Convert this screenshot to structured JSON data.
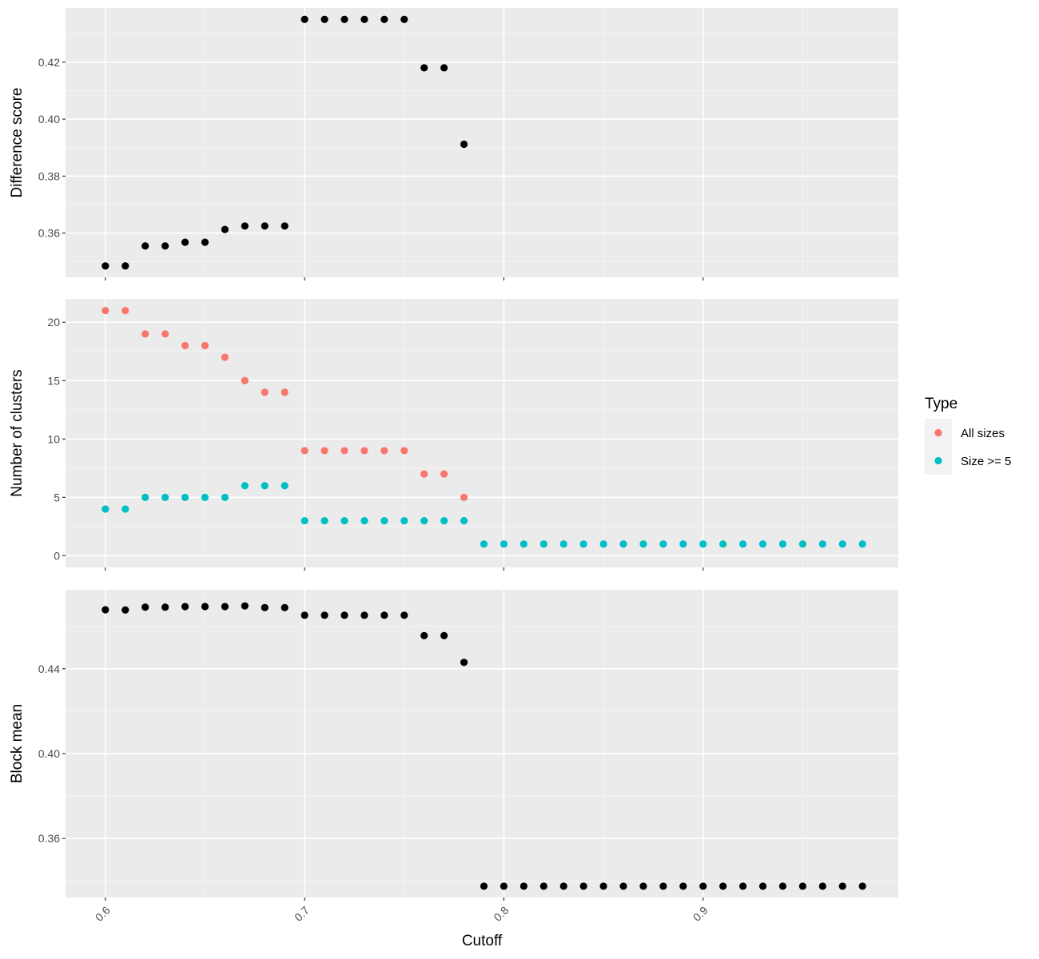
{
  "chart_data": [
    {
      "type": "scatter",
      "panel": "top",
      "ylabel": "Difference score",
      "xlim": [
        0.58,
        0.998
      ],
      "ylim": [
        0.3445,
        0.439
      ],
      "yticks": [
        0.36,
        0.38,
        0.4,
        0.42
      ],
      "ytick_labels": [
        "0.36",
        "0.38",
        "0.40",
        "0.42"
      ],
      "grid": true,
      "series": [
        {
          "color": "#000000",
          "x": [
            0.6,
            0.61,
            0.62,
            0.63,
            0.64,
            0.65,
            0.66,
            0.67,
            0.68,
            0.69,
            0.7,
            0.71,
            0.72,
            0.73,
            0.74,
            0.75,
            0.76,
            0.77,
            0.78
          ],
          "y": [
            0.3485,
            0.3485,
            0.3555,
            0.3555,
            0.3568,
            0.3568,
            0.3613,
            0.3625,
            0.3625,
            0.3625,
            0.435,
            0.435,
            0.435,
            0.435,
            0.435,
            0.435,
            0.418,
            0.418,
            0.3912
          ]
        }
      ]
    },
    {
      "type": "scatter",
      "panel": "middle",
      "ylabel": "Number of clusters",
      "xlim": [
        0.58,
        0.998
      ],
      "ylim": [
        -1,
        22
      ],
      "yticks": [
        0,
        5,
        10,
        15,
        20
      ],
      "ytick_labels": [
        "0",
        "5",
        "10",
        "15",
        "20"
      ],
      "grid": true,
      "legend": {
        "title": "Type",
        "position": "right"
      },
      "series": [
        {
          "name": "All sizes",
          "color": "#F8766D",
          "x": [
            0.6,
            0.61,
            0.62,
            0.63,
            0.64,
            0.65,
            0.66,
            0.67,
            0.68,
            0.69,
            0.7,
            0.71,
            0.72,
            0.73,
            0.74,
            0.75,
            0.76,
            0.77,
            0.78
          ],
          "y": [
            21,
            21,
            19,
            19,
            18,
            18,
            17,
            15,
            14,
            14,
            9,
            9,
            9,
            9,
            9,
            9,
            7,
            7,
            5
          ]
        },
        {
          "name": "Size >= 5",
          "color": "#00BFC4",
          "x": [
            0.6,
            0.61,
            0.62,
            0.63,
            0.64,
            0.65,
            0.66,
            0.67,
            0.68,
            0.69,
            0.7,
            0.71,
            0.72,
            0.73,
            0.74,
            0.75,
            0.76,
            0.77,
            0.78,
            0.79,
            0.8,
            0.81,
            0.82,
            0.83,
            0.84,
            0.85,
            0.86,
            0.87,
            0.88,
            0.89,
            0.9,
            0.91,
            0.92,
            0.93,
            0.94,
            0.95,
            0.96,
            0.97,
            0.98
          ],
          "y": [
            4,
            4,
            5,
            5,
            5,
            5,
            5,
            6,
            6,
            6,
            3,
            3,
            3,
            3,
            3,
            3,
            3,
            3,
            3,
            1,
            1,
            1,
            1,
            1,
            1,
            1,
            1,
            1,
            1,
            1,
            1,
            1,
            1,
            1,
            1,
            1,
            1,
            1,
            1
          ]
        }
      ]
    },
    {
      "type": "scatter",
      "panel": "bottom",
      "ylabel": "Block mean",
      "xlabel": "Cutoff",
      "xlim": [
        0.58,
        0.998
      ],
      "ylim": [
        0.3322,
        0.4772
      ],
      "yticks": [
        0.36,
        0.4,
        0.44
      ],
      "ytick_labels": [
        "0.36",
        "0.40",
        "0.44"
      ],
      "xticks": [
        0.6,
        0.7,
        0.8,
        0.9
      ],
      "xtick_labels": [
        "0.6",
        "0.7",
        "0.8",
        "0.9"
      ],
      "grid": true,
      "series": [
        {
          "color": "#000000",
          "x": [
            0.6,
            0.61,
            0.62,
            0.63,
            0.64,
            0.65,
            0.66,
            0.67,
            0.68,
            0.69,
            0.7,
            0.71,
            0.72,
            0.73,
            0.74,
            0.75,
            0.76,
            0.77,
            0.78,
            0.79,
            0.8,
            0.81,
            0.82,
            0.83,
            0.84,
            0.85,
            0.86,
            0.87,
            0.88,
            0.89,
            0.9,
            0.91,
            0.92,
            0.93,
            0.94,
            0.95,
            0.96,
            0.97,
            0.98
          ],
          "y": [
            0.4678,
            0.4677,
            0.469,
            0.469,
            0.4693,
            0.4693,
            0.4693,
            0.4696,
            0.4688,
            0.4688,
            0.4652,
            0.4652,
            0.4652,
            0.4652,
            0.4652,
            0.4652,
            0.4556,
            0.4556,
            0.443,
            0.3375,
            0.3375,
            0.3375,
            0.3375,
            0.3375,
            0.3375,
            0.3375,
            0.3375,
            0.3375,
            0.3375,
            0.3375,
            0.3375,
            0.3375,
            0.3375,
            0.3375,
            0.3375,
            0.3375,
            0.3375,
            0.3375,
            0.3375
          ]
        }
      ]
    }
  ]
}
